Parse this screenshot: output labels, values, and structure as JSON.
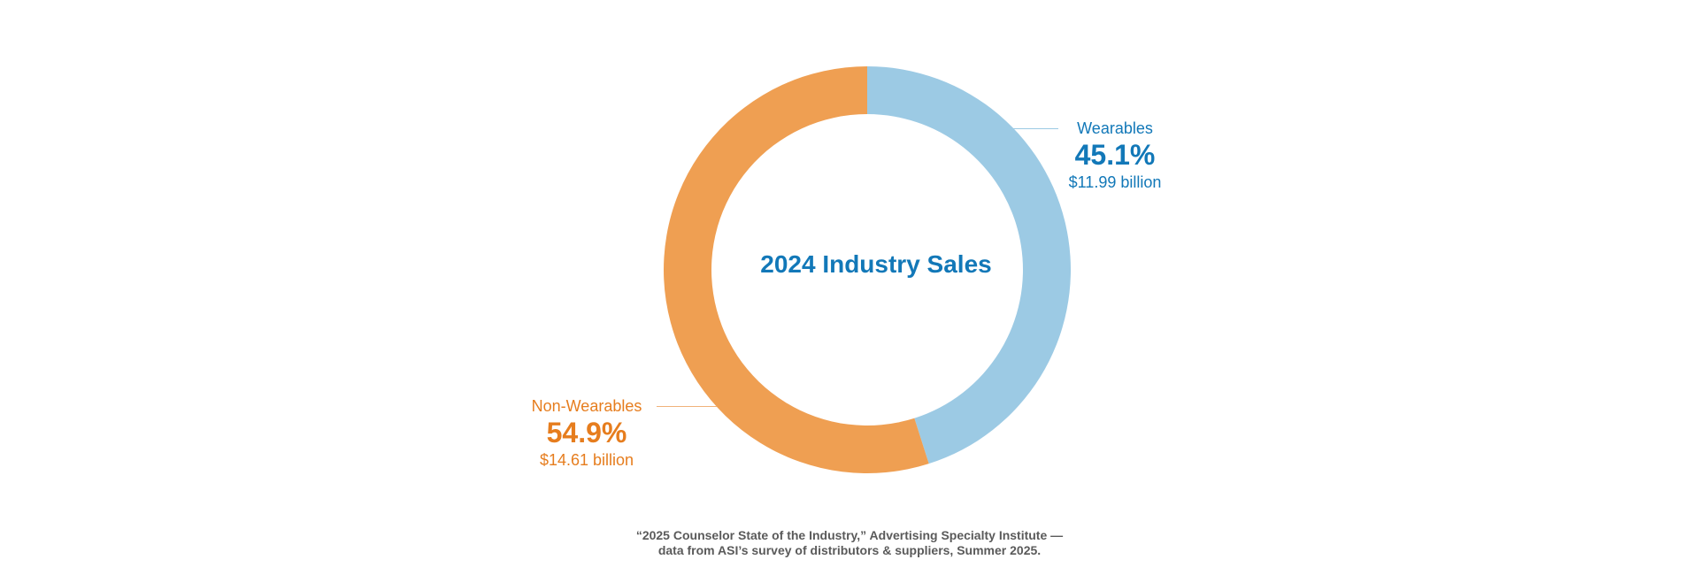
{
  "chart_data": {
    "type": "pie",
    "style": "donut",
    "title": "2024 Industry Sales",
    "slices": [
      {
        "label": "Wearables",
        "percent": 45.1,
        "percent_label": "45.1%",
        "amount_label": "$11.99 billion",
        "color": "#9ccae4",
        "text_color": "#1278b8"
      },
      {
        "label": "Non-Wearables",
        "percent": 54.9,
        "percent_label": "54.9%",
        "amount_label": "$14.61 billion",
        "color": "#ef9f52",
        "text_color": "#e67d1e"
      }
    ],
    "start_angle_deg": 0,
    "direction": "clockwise"
  },
  "source": {
    "line1": "“2025 Counselor State of the Industry,” Advertising Specialty Institute —",
    "line2": "data from ASI’s survey of distributors & suppliers, Summer 2025."
  }
}
